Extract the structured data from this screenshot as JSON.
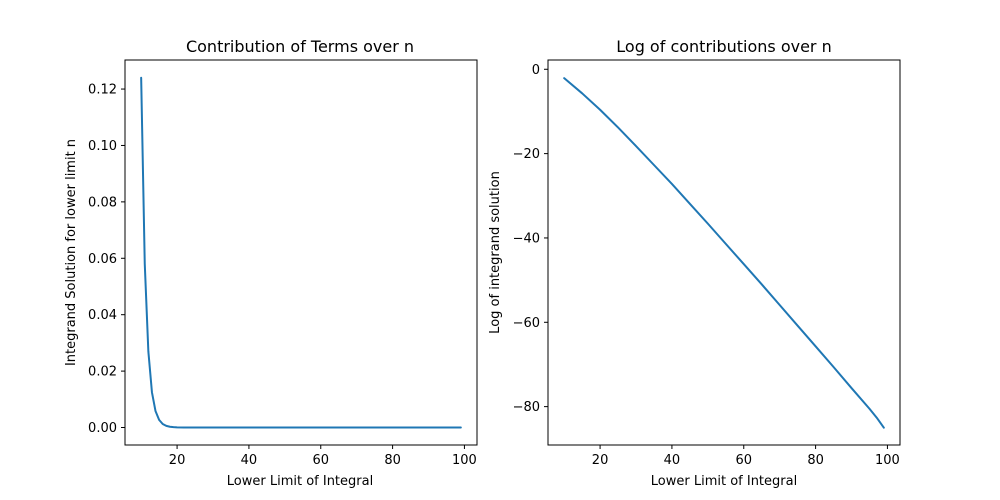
{
  "chart_data": [
    {
      "type": "line",
      "title": "Contribution of Terms over n",
      "xlabel": "Lower Limit of Integral",
      "ylabel": "Integrand Solution for lower limit n",
      "xlim": [
        5.5,
        103.5
      ],
      "ylim": [
        -0.0062,
        0.1303
      ],
      "xticks": [
        20,
        40,
        60,
        80,
        100
      ],
      "xtick_labels": [
        "20",
        "40",
        "60",
        "80",
        "100"
      ],
      "yticks": [
        0.0,
        0.02,
        0.04,
        0.06,
        0.08,
        0.1,
        0.12
      ],
      "ytick_labels": [
        "0.00",
        "0.02",
        "0.04",
        "0.06",
        "0.08",
        "0.10",
        "0.12"
      ],
      "grid": false,
      "color": "#1f77b4",
      "x": [
        10,
        11,
        12,
        13,
        14,
        15,
        16,
        17,
        18,
        19,
        20,
        22,
        25,
        30,
        40,
        50,
        60,
        70,
        80,
        90,
        99
      ],
      "y": [
        0.124,
        0.058,
        0.027,
        0.0125,
        0.0058,
        0.0027,
        0.00125,
        0.00058,
        0.00027,
        0.000125,
        6e-05,
        1e-05,
        1e-06,
        0.0,
        0.0,
        0.0,
        0.0,
        0.0,
        0.0,
        0.0,
        0.0
      ]
    },
    {
      "type": "line",
      "title": "Log of contributions over n",
      "xlabel": "Lower Limit of Integral",
      "ylabel": "Log of integrand solution",
      "xlim": [
        5.5,
        103.5
      ],
      "ylim": [
        -89.1,
        2.2
      ],
      "xticks": [
        20,
        40,
        60,
        80,
        100
      ],
      "xtick_labels": [
        "20",
        "40",
        "60",
        "80",
        "100"
      ],
      "yticks": [
        0,
        -20,
        -40,
        -60,
        -80
      ],
      "ytick_labels": [
        "0",
        "−20",
        "−40",
        "−60",
        "−80"
      ],
      "grid": false,
      "color": "#1f77b4",
      "x": [
        10,
        15,
        20,
        25,
        30,
        35,
        40,
        45,
        50,
        55,
        60,
        65,
        70,
        75,
        80,
        85,
        90,
        95,
        97,
        99
      ],
      "y": [
        -2.1,
        -5.7,
        -9.6,
        -13.8,
        -18.2,
        -22.7,
        -27.2,
        -31.9,
        -36.6,
        -41.4,
        -46.2,
        -51.0,
        -55.9,
        -60.8,
        -65.7,
        -70.6,
        -75.6,
        -80.5,
        -82.6,
        -85.0
      ]
    }
  ]
}
